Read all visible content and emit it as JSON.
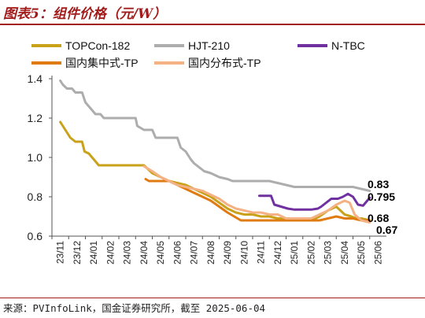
{
  "title": "图表5：组件价格（元/W）",
  "source": "来源：PVInfoLink，国金证券研究所，截至 2025-06-04",
  "chart_data": {
    "type": "line",
    "xlabel": "",
    "ylabel": "",
    "ylim": [
      0.6,
      1.4
    ],
    "yticks": [
      "0.6",
      "0.8",
      "1.0",
      "1.2",
      "1.4"
    ],
    "categories": [
      "23/11",
      "23/12",
      "24/01",
      "24/02",
      "24/03",
      "24/04",
      "24/05",
      "24/06",
      "24/07",
      "24/08",
      "24/09",
      "24/10",
      "24/11",
      "24/12",
      "25/01",
      "25/02",
      "25/03",
      "25/04",
      "25/05",
      "25/06"
    ],
    "legend": [
      "TOPCon-182",
      "HJT-210",
      "N-TBC",
      "国内集中式-TP",
      "国内分布式-TP"
    ],
    "end_labels": [
      "0.83",
      "0.795",
      "0.68",
      "0.67"
    ],
    "series": [
      {
        "name": "TOPCon-182",
        "color": "#c9a21a",
        "width": 3,
        "points": [
          [
            0,
            1.18
          ],
          [
            0.3,
            1.14
          ],
          [
            0.6,
            1.1
          ],
          [
            0.9,
            1.08
          ],
          [
            1.3,
            1.08
          ],
          [
            1.45,
            1.03
          ],
          [
            1.7,
            1.02
          ],
          [
            1.9,
            1.0
          ],
          [
            2.1,
            0.98
          ],
          [
            2.3,
            0.96
          ],
          [
            3,
            0.96
          ],
          [
            4,
            0.96
          ],
          [
            5,
            0.96
          ],
          [
            5.5,
            0.92
          ],
          [
            6,
            0.9
          ],
          [
            6.5,
            0.88
          ],
          [
            7,
            0.87
          ],
          [
            7.5,
            0.86
          ],
          [
            8,
            0.84
          ],
          [
            8.5,
            0.82
          ],
          [
            9,
            0.8
          ],
          [
            9.5,
            0.77
          ],
          [
            10,
            0.74
          ],
          [
            10.5,
            0.72
          ],
          [
            11,
            0.71
          ],
          [
            11.5,
            0.71
          ],
          [
            12,
            0.7
          ],
          [
            12.5,
            0.7
          ],
          [
            13,
            0.69
          ],
          [
            13.5,
            0.69
          ],
          [
            14,
            0.68
          ],
          [
            15,
            0.68
          ],
          [
            15.5,
            0.7
          ],
          [
            16,
            0.73
          ],
          [
            16.5,
            0.75
          ],
          [
            17,
            0.71
          ],
          [
            17.4,
            0.7
          ],
          [
            17.7,
            0.69
          ],
          [
            18,
            0.69
          ],
          [
            18.5,
            0.68
          ]
        ]
      },
      {
        "name": "HJT-210",
        "color": "#adadad",
        "width": 3,
        "points": [
          [
            0,
            1.39
          ],
          [
            0.15,
            1.37
          ],
          [
            0.4,
            1.35
          ],
          [
            0.7,
            1.35
          ],
          [
            0.9,
            1.33
          ],
          [
            1.3,
            1.33
          ],
          [
            1.5,
            1.28
          ],
          [
            1.8,
            1.25
          ],
          [
            2.1,
            1.22
          ],
          [
            2.4,
            1.22
          ],
          [
            2.6,
            1.2
          ],
          [
            3,
            1.2
          ],
          [
            4,
            1.2
          ],
          [
            4.5,
            1.2
          ],
          [
            4.6,
            1.16
          ],
          [
            5,
            1.14
          ],
          [
            5.5,
            1.14
          ],
          [
            5.7,
            1.1
          ],
          [
            6,
            1.1
          ],
          [
            6.5,
            1.1
          ],
          [
            7,
            1.1
          ],
          [
            7.2,
            1.05
          ],
          [
            7.5,
            1.03
          ],
          [
            7.8,
            0.99
          ],
          [
            8,
            0.97
          ],
          [
            8.3,
            0.95
          ],
          [
            8.6,
            0.93
          ],
          [
            9,
            0.92
          ],
          [
            9.5,
            0.9
          ],
          [
            10,
            0.89
          ],
          [
            10.3,
            0.88
          ],
          [
            11,
            0.88
          ],
          [
            12,
            0.88
          ],
          [
            12.5,
            0.88
          ],
          [
            13,
            0.87
          ],
          [
            13.5,
            0.86
          ],
          [
            14,
            0.85
          ],
          [
            15,
            0.85
          ],
          [
            16,
            0.85
          ],
          [
            17,
            0.85
          ],
          [
            17.5,
            0.85
          ],
          [
            18,
            0.84
          ],
          [
            18.5,
            0.83
          ]
        ]
      },
      {
        "name": "N-TBC",
        "color": "#7030a0",
        "width": 3,
        "points": [
          [
            11.9,
            0.805
          ],
          [
            12.6,
            0.805
          ],
          [
            12.8,
            0.76
          ],
          [
            13.2,
            0.75
          ],
          [
            13.6,
            0.74
          ],
          [
            14,
            0.735
          ],
          [
            14.5,
            0.735
          ],
          [
            15,
            0.735
          ],
          [
            15.4,
            0.74
          ],
          [
            15.6,
            0.75
          ],
          [
            15.9,
            0.77
          ],
          [
            16.2,
            0.79
          ],
          [
            16.6,
            0.79
          ],
          [
            16.9,
            0.8
          ],
          [
            17.2,
            0.815
          ],
          [
            17.5,
            0.8
          ],
          [
            17.8,
            0.76
          ],
          [
            18.1,
            0.755
          ],
          [
            18.5,
            0.795
          ]
        ]
      },
      {
        "name": "国内集中式-TP",
        "color": "#e07b12",
        "width": 3,
        "points": [
          [
            5.1,
            0.89
          ],
          [
            5.3,
            0.88
          ],
          [
            6,
            0.88
          ],
          [
            6.5,
            0.88
          ],
          [
            7,
            0.86
          ],
          [
            7.5,
            0.84
          ],
          [
            8,
            0.82
          ],
          [
            8.5,
            0.8
          ],
          [
            9,
            0.78
          ],
          [
            9.5,
            0.75
          ],
          [
            10,
            0.72
          ],
          [
            10.4,
            0.7
          ],
          [
            10.8,
            0.68
          ],
          [
            11,
            0.68
          ],
          [
            12,
            0.68
          ],
          [
            13,
            0.68
          ],
          [
            14,
            0.68
          ],
          [
            15,
            0.68
          ],
          [
            15.5,
            0.68
          ],
          [
            16,
            0.69
          ],
          [
            16.5,
            0.7
          ],
          [
            17,
            0.69
          ],
          [
            17.5,
            0.69
          ],
          [
            18,
            0.68
          ],
          [
            18.5,
            0.68
          ]
        ]
      },
      {
        "name": "国内分布式-TP",
        "color": "#f4b183",
        "width": 3,
        "points": [
          [
            5,
            0.955
          ],
          [
            5.5,
            0.93
          ],
          [
            6,
            0.9
          ],
          [
            6.5,
            0.88
          ],
          [
            7,
            0.86
          ],
          [
            7.5,
            0.85
          ],
          [
            8,
            0.84
          ],
          [
            8.5,
            0.83
          ],
          [
            9,
            0.81
          ],
          [
            9.5,
            0.79
          ],
          [
            10,
            0.76
          ],
          [
            10.5,
            0.74
          ],
          [
            11,
            0.73
          ],
          [
            11.5,
            0.72
          ],
          [
            12,
            0.72
          ],
          [
            12.5,
            0.71
          ],
          [
            13,
            0.71
          ],
          [
            13.5,
            0.69
          ],
          [
            14,
            0.69
          ],
          [
            14.5,
            0.69
          ],
          [
            15,
            0.69
          ],
          [
            15.5,
            0.71
          ],
          [
            16,
            0.73
          ],
          [
            16.5,
            0.76
          ],
          [
            17,
            0.78
          ],
          [
            17.3,
            0.77
          ],
          [
            17.6,
            0.71
          ],
          [
            18,
            0.68
          ],
          [
            18.5,
            0.67
          ]
        ]
      }
    ]
  }
}
